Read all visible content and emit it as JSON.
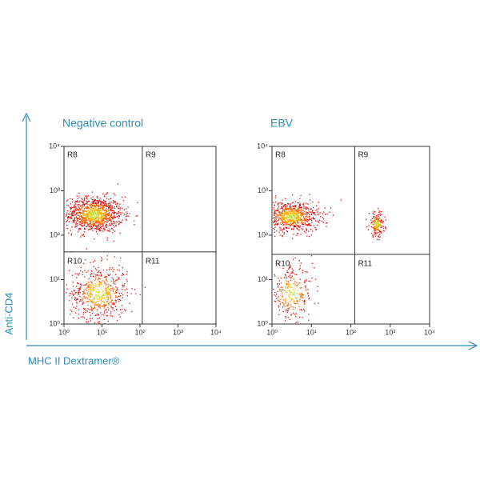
{
  "figure": {
    "y_label": "Anti-CD4",
    "x_label": "MHC II Dextramer®"
  },
  "chart_data": [
    {
      "type": "scatter",
      "title": "Negative control",
      "log_scale": true,
      "xlim": [
        1,
        10000
      ],
      "ylim": [
        1,
        10000
      ],
      "xticks": [
        {
          "value": 1,
          "label": "10⁰"
        },
        {
          "value": 10,
          "label": "10¹"
        },
        {
          "value": 100,
          "label": "10²"
        },
        {
          "value": 1000,
          "label": "10³"
        },
        {
          "value": 10000,
          "label": "10⁴"
        }
      ],
      "yticks": [
        {
          "value": 1,
          "label": "10⁰"
        },
        {
          "value": 10,
          "label": "10¹"
        },
        {
          "value": 100,
          "label": "10²"
        },
        {
          "value": 1000,
          "label": "10³"
        },
        {
          "value": 10000,
          "label": "10⁴"
        }
      ],
      "gate_x": 115,
      "gate_y": 42,
      "gates": [
        "R8",
        "R9",
        "R10",
        "R11"
      ],
      "clusters": [
        {
          "x": 6,
          "y": 300,
          "sx": 0.38,
          "sy": 0.2
        },
        {
          "x": 8,
          "y": 5,
          "sx": 0.38,
          "sy": 0.32
        }
      ]
    },
    {
      "type": "scatter",
      "title": "EBV",
      "log_scale": true,
      "xlim": [
        1,
        10000
      ],
      "ylim": [
        1,
        10000
      ],
      "xticks": [
        {
          "value": 1,
          "label": "10⁰"
        },
        {
          "value": 10,
          "label": "10¹"
        },
        {
          "value": 100,
          "label": "10²"
        },
        {
          "value": 1000,
          "label": "10³"
        },
        {
          "value": 10000,
          "label": "10⁴"
        }
      ],
      "yticks": [
        {
          "value": 1,
          "label": "10⁰"
        },
        {
          "value": 10,
          "label": "10¹"
        },
        {
          "value": 100,
          "label": "10²"
        },
        {
          "value": 1000,
          "label": "10³"
        },
        {
          "value": 10000,
          "label": "10⁴"
        }
      ],
      "gate_x": 126,
      "gate_y": 37,
      "gates": [
        "R8",
        "R9",
        "R10",
        "R11"
      ],
      "clusters": [
        {
          "x": 3,
          "y": 270,
          "sx": 0.35,
          "sy": 0.17
        },
        {
          "x": 450,
          "y": 180,
          "sx": 0.1,
          "sy": 0.14
        },
        {
          "x": 3,
          "y": 5,
          "sx": 0.28,
          "sy": 0.3
        }
      ]
    }
  ]
}
